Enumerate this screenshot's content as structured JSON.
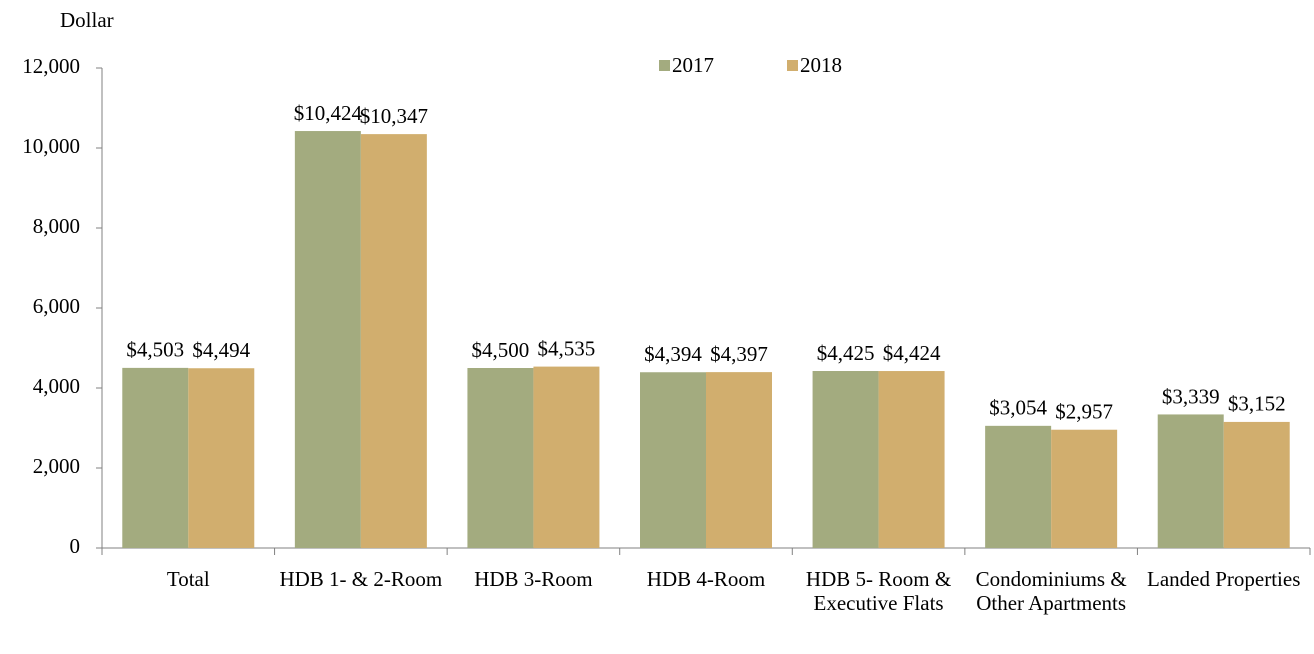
{
  "chart_data": {
    "type": "bar",
    "y_label": "Dollar",
    "categories": [
      "Total",
      "HDB 1- & 2-Room",
      "HDB 3-Room",
      "HDB 4-Room",
      "HDB 5- Room & Executive Flats",
      "Condominiums & Other Apartments",
      "Landed Properties"
    ],
    "series": [
      {
        "name": "2017",
        "color": "#a3ab7f",
        "values": [
          4503,
          10424,
          4500,
          4394,
          4425,
          3054,
          3339
        ],
        "value_labels": [
          "$4,503",
          "$10,424",
          "$4,500",
          "$4,394",
          "$4,425",
          "$3,054",
          "$3,339"
        ]
      },
      {
        "name": "2018",
        "color": "#d1ae6e",
        "values": [
          4494,
          10347,
          4535,
          4397,
          4424,
          2957,
          3152
        ],
        "value_labels": [
          "$4,494",
          "$10,347",
          "$4,535",
          "$4,397",
          "$4,424",
          "$2,957",
          "$3,152"
        ]
      }
    ],
    "ylim": [
      0,
      12000
    ],
    "yticks": [
      0,
      {
        "value": 2000,
        "label": "2,000"
      },
      {
        "value": 4000,
        "label": "4,000"
      },
      {
        "value": 6000,
        "label": "6,000"
      },
      {
        "value": 8000,
        "label": "8,000"
      },
      {
        "value": 10000,
        "label": "10,000"
      },
      {
        "value": 12000,
        "label": "12,000"
      }
    ],
    "legend": "top"
  }
}
